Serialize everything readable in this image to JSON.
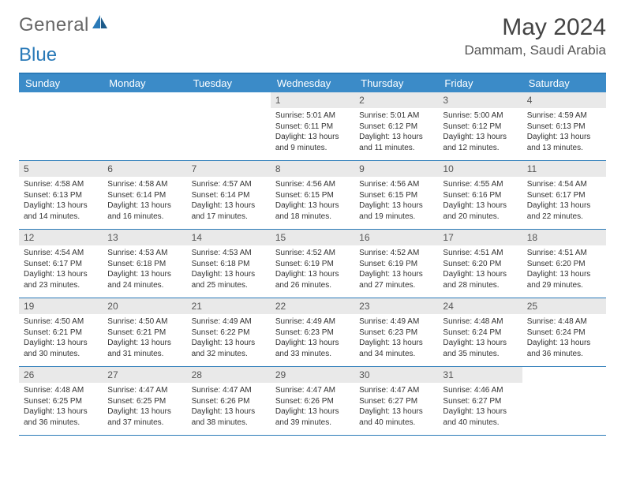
{
  "logo": {
    "text1": "General",
    "text2": "Blue",
    "icon_color": "#2a7ab8"
  },
  "title": "May 2024",
  "location": "Dammam, Saudi Arabia",
  "colors": {
    "header_bg": "#3b8bc8",
    "border": "#2a7ab8",
    "num_bg": "#e9e9e9",
    "text": "#333333"
  },
  "typography": {
    "title_pt": 30,
    "location_pt": 17,
    "dayhead_pt": 13,
    "cell_pt": 10
  },
  "day_names": [
    "Sunday",
    "Monday",
    "Tuesday",
    "Wednesday",
    "Thursday",
    "Friday",
    "Saturday"
  ],
  "weeks": [
    [
      {
        "empty": true
      },
      {
        "empty": true
      },
      {
        "empty": true
      },
      {
        "n": "1",
        "sr": "Sunrise: 5:01 AM",
        "ss": "Sunset: 6:11 PM",
        "dl": "Daylight: 13 hours and 9 minutes."
      },
      {
        "n": "2",
        "sr": "Sunrise: 5:01 AM",
        "ss": "Sunset: 6:12 PM",
        "dl": "Daylight: 13 hours and 11 minutes."
      },
      {
        "n": "3",
        "sr": "Sunrise: 5:00 AM",
        "ss": "Sunset: 6:12 PM",
        "dl": "Daylight: 13 hours and 12 minutes."
      },
      {
        "n": "4",
        "sr": "Sunrise: 4:59 AM",
        "ss": "Sunset: 6:13 PM",
        "dl": "Daylight: 13 hours and 13 minutes."
      }
    ],
    [
      {
        "n": "5",
        "sr": "Sunrise: 4:58 AM",
        "ss": "Sunset: 6:13 PM",
        "dl": "Daylight: 13 hours and 14 minutes."
      },
      {
        "n": "6",
        "sr": "Sunrise: 4:58 AM",
        "ss": "Sunset: 6:14 PM",
        "dl": "Daylight: 13 hours and 16 minutes."
      },
      {
        "n": "7",
        "sr": "Sunrise: 4:57 AM",
        "ss": "Sunset: 6:14 PM",
        "dl": "Daylight: 13 hours and 17 minutes."
      },
      {
        "n": "8",
        "sr": "Sunrise: 4:56 AM",
        "ss": "Sunset: 6:15 PM",
        "dl": "Daylight: 13 hours and 18 minutes."
      },
      {
        "n": "9",
        "sr": "Sunrise: 4:56 AM",
        "ss": "Sunset: 6:15 PM",
        "dl": "Daylight: 13 hours and 19 minutes."
      },
      {
        "n": "10",
        "sr": "Sunrise: 4:55 AM",
        "ss": "Sunset: 6:16 PM",
        "dl": "Daylight: 13 hours and 20 minutes."
      },
      {
        "n": "11",
        "sr": "Sunrise: 4:54 AM",
        "ss": "Sunset: 6:17 PM",
        "dl": "Daylight: 13 hours and 22 minutes."
      }
    ],
    [
      {
        "n": "12",
        "sr": "Sunrise: 4:54 AM",
        "ss": "Sunset: 6:17 PM",
        "dl": "Daylight: 13 hours and 23 minutes."
      },
      {
        "n": "13",
        "sr": "Sunrise: 4:53 AM",
        "ss": "Sunset: 6:18 PM",
        "dl": "Daylight: 13 hours and 24 minutes."
      },
      {
        "n": "14",
        "sr": "Sunrise: 4:53 AM",
        "ss": "Sunset: 6:18 PM",
        "dl": "Daylight: 13 hours and 25 minutes."
      },
      {
        "n": "15",
        "sr": "Sunrise: 4:52 AM",
        "ss": "Sunset: 6:19 PM",
        "dl": "Daylight: 13 hours and 26 minutes."
      },
      {
        "n": "16",
        "sr": "Sunrise: 4:52 AM",
        "ss": "Sunset: 6:19 PM",
        "dl": "Daylight: 13 hours and 27 minutes."
      },
      {
        "n": "17",
        "sr": "Sunrise: 4:51 AM",
        "ss": "Sunset: 6:20 PM",
        "dl": "Daylight: 13 hours and 28 minutes."
      },
      {
        "n": "18",
        "sr": "Sunrise: 4:51 AM",
        "ss": "Sunset: 6:20 PM",
        "dl": "Daylight: 13 hours and 29 minutes."
      }
    ],
    [
      {
        "n": "19",
        "sr": "Sunrise: 4:50 AM",
        "ss": "Sunset: 6:21 PM",
        "dl": "Daylight: 13 hours and 30 minutes."
      },
      {
        "n": "20",
        "sr": "Sunrise: 4:50 AM",
        "ss": "Sunset: 6:21 PM",
        "dl": "Daylight: 13 hours and 31 minutes."
      },
      {
        "n": "21",
        "sr": "Sunrise: 4:49 AM",
        "ss": "Sunset: 6:22 PM",
        "dl": "Daylight: 13 hours and 32 minutes."
      },
      {
        "n": "22",
        "sr": "Sunrise: 4:49 AM",
        "ss": "Sunset: 6:23 PM",
        "dl": "Daylight: 13 hours and 33 minutes."
      },
      {
        "n": "23",
        "sr": "Sunrise: 4:49 AM",
        "ss": "Sunset: 6:23 PM",
        "dl": "Daylight: 13 hours and 34 minutes."
      },
      {
        "n": "24",
        "sr": "Sunrise: 4:48 AM",
        "ss": "Sunset: 6:24 PM",
        "dl": "Daylight: 13 hours and 35 minutes."
      },
      {
        "n": "25",
        "sr": "Sunrise: 4:48 AM",
        "ss": "Sunset: 6:24 PM",
        "dl": "Daylight: 13 hours and 36 minutes."
      }
    ],
    [
      {
        "n": "26",
        "sr": "Sunrise: 4:48 AM",
        "ss": "Sunset: 6:25 PM",
        "dl": "Daylight: 13 hours and 36 minutes."
      },
      {
        "n": "27",
        "sr": "Sunrise: 4:47 AM",
        "ss": "Sunset: 6:25 PM",
        "dl": "Daylight: 13 hours and 37 minutes."
      },
      {
        "n": "28",
        "sr": "Sunrise: 4:47 AM",
        "ss": "Sunset: 6:26 PM",
        "dl": "Daylight: 13 hours and 38 minutes."
      },
      {
        "n": "29",
        "sr": "Sunrise: 4:47 AM",
        "ss": "Sunset: 6:26 PM",
        "dl": "Daylight: 13 hours and 39 minutes."
      },
      {
        "n": "30",
        "sr": "Sunrise: 4:47 AM",
        "ss": "Sunset: 6:27 PM",
        "dl": "Daylight: 13 hours and 40 minutes."
      },
      {
        "n": "31",
        "sr": "Sunrise: 4:46 AM",
        "ss": "Sunset: 6:27 PM",
        "dl": "Daylight: 13 hours and 40 minutes."
      },
      {
        "empty": true
      }
    ]
  ]
}
